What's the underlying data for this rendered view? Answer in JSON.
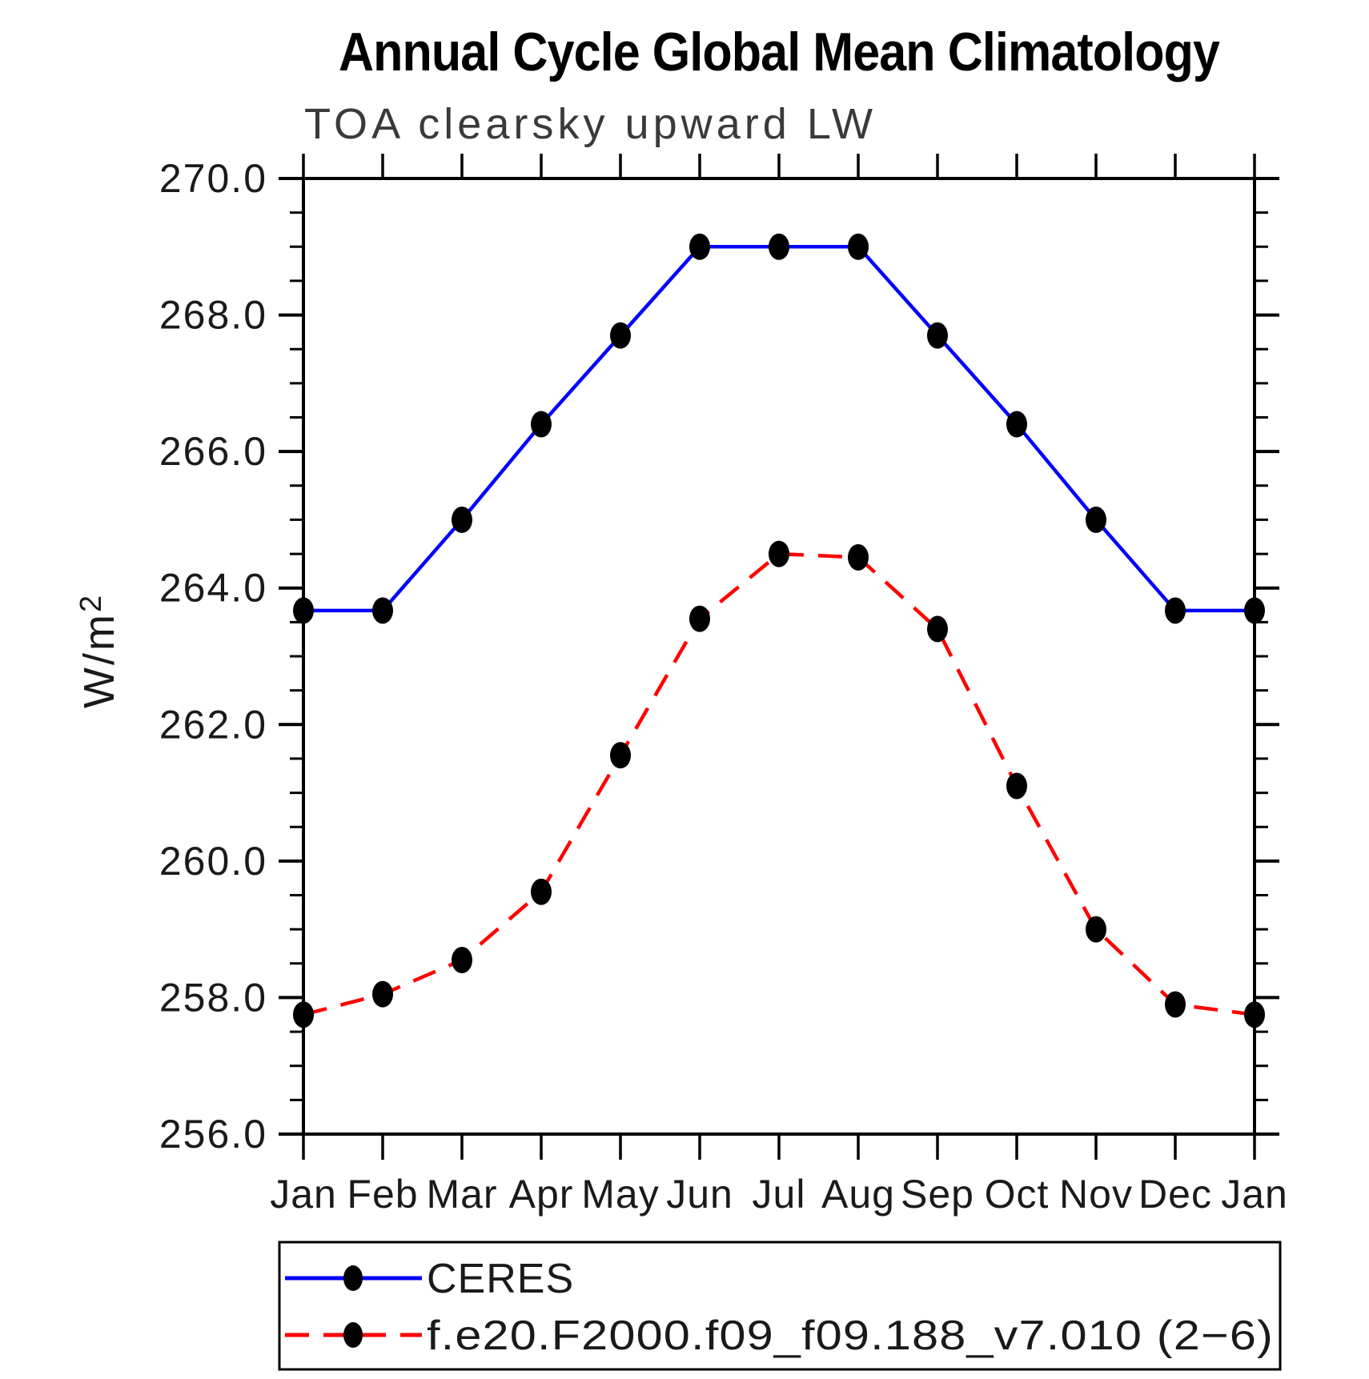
{
  "title": "Annual Cycle Global Mean Climatology",
  "subtitle": "TOA clearsky upward LW",
  "ylabel_base": "W/m",
  "ylabel_exponent": "2",
  "colors": {
    "axis": "#000000",
    "background": "#ffffff",
    "ceres_line": "#0000ff",
    "model_line": "#ff0000",
    "marker": "#000000",
    "text": "#1a1a1a"
  },
  "chart_data": {
    "type": "line",
    "title": "Annual Cycle Global Mean Climatology",
    "subtitle": "TOA clearsky upward LW",
    "xlabel": "",
    "ylabel": "W/m2",
    "categories": [
      "Jan",
      "Feb",
      "Mar",
      "Apr",
      "May",
      "Jun",
      "Jul",
      "Aug",
      "Sep",
      "Oct",
      "Nov",
      "Dec",
      "Jan"
    ],
    "ylim": [
      256.0,
      270.0
    ],
    "ytick_major_step": 2.0,
    "ytick_minor_step": 0.5,
    "ytick_labels": [
      "256.0",
      "258.0",
      "260.0",
      "262.0",
      "264.0",
      "266.0",
      "268.0",
      "270.0"
    ],
    "grid": false,
    "legend_position": "bottom-left",
    "series": [
      {
        "name": "CERES",
        "color": "#0000ff",
        "line_style": "solid",
        "marker": "filled-circle",
        "marker_color": "#000000",
        "values": [
          263.67,
          263.67,
          265.0,
          266.4,
          267.7,
          269.0,
          269.0,
          269.0,
          267.7,
          266.4,
          265.0,
          263.67,
          263.67
        ]
      },
      {
        "name": "f.e20.F2000.f09_f09.188_v7.010 (2−6)",
        "color": "#ff0000",
        "line_style": "dashed",
        "marker": "filled-circle",
        "marker_color": "#000000",
        "values": [
          257.75,
          258.05,
          258.55,
          259.55,
          261.55,
          263.55,
          264.5,
          264.45,
          263.4,
          261.1,
          259.0,
          257.9,
          257.75
        ]
      }
    ]
  }
}
